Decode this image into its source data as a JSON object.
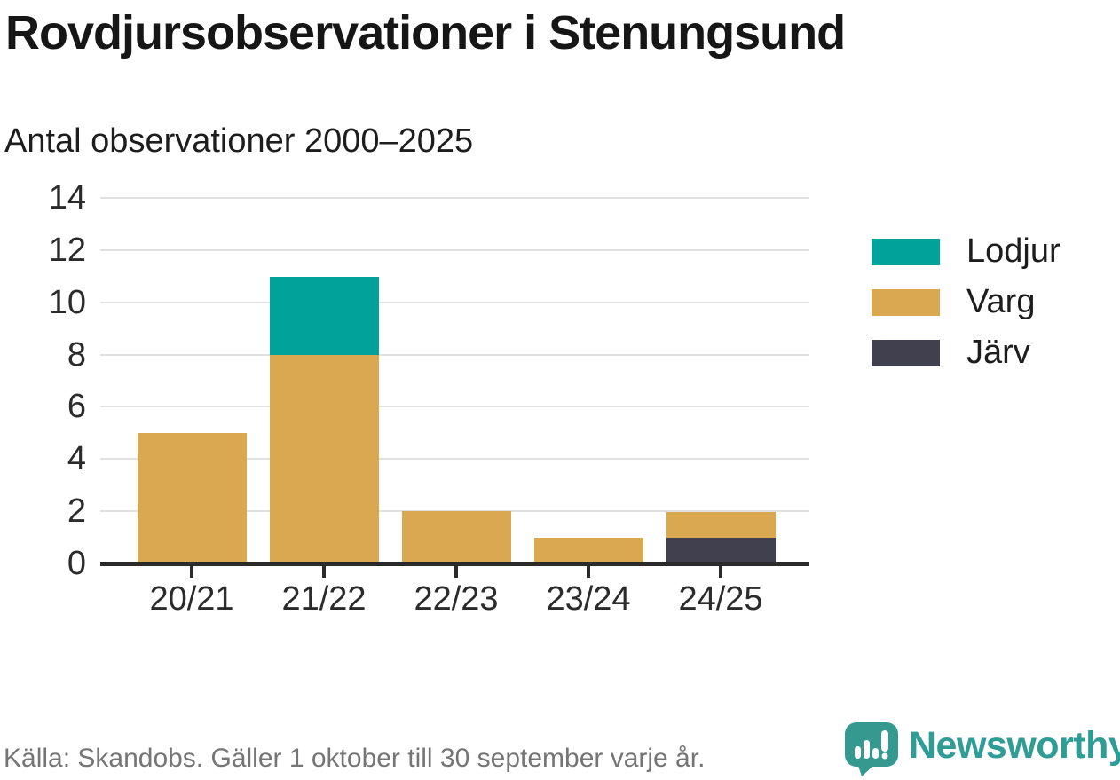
{
  "chart_data": {
    "type": "bar",
    "stacked": true,
    "title": "Rovdjursobservationer i Stenungsund",
    "subtitle": "Antal observationer 2000–2025",
    "categories": [
      "20/21",
      "21/22",
      "22/23",
      "23/24",
      "24/25"
    ],
    "series": [
      {
        "name": "Lodjur",
        "color": "#00a29a",
        "values": [
          0,
          3,
          0,
          0,
          0
        ]
      },
      {
        "name": "Varg",
        "color": "#d9a851",
        "values": [
          5,
          8,
          2,
          1,
          1
        ]
      },
      {
        "name": "Järv",
        "color": "#40404e",
        "values": [
          0,
          0,
          0,
          0,
          1
        ]
      }
    ],
    "stack_order_bottom_to_top": [
      "Järv",
      "Varg",
      "Lodjur"
    ],
    "totals": [
      5,
      11,
      2,
      1,
      2
    ],
    "xlabel": "",
    "ylabel": "",
    "ylim": [
      0,
      14
    ],
    "yticks": [
      0,
      2,
      4,
      6,
      8,
      10,
      12,
      14
    ],
    "grid": "horizontal",
    "legend_position": "right"
  },
  "footer": {
    "source": "Källa: Skandobs. Gäller 1 oktober till 30 september varje år.",
    "brand": "Newsworthy",
    "brand_color": "#2f9c96",
    "logo_icon": "bar-chart-speech-bubble-icon"
  }
}
